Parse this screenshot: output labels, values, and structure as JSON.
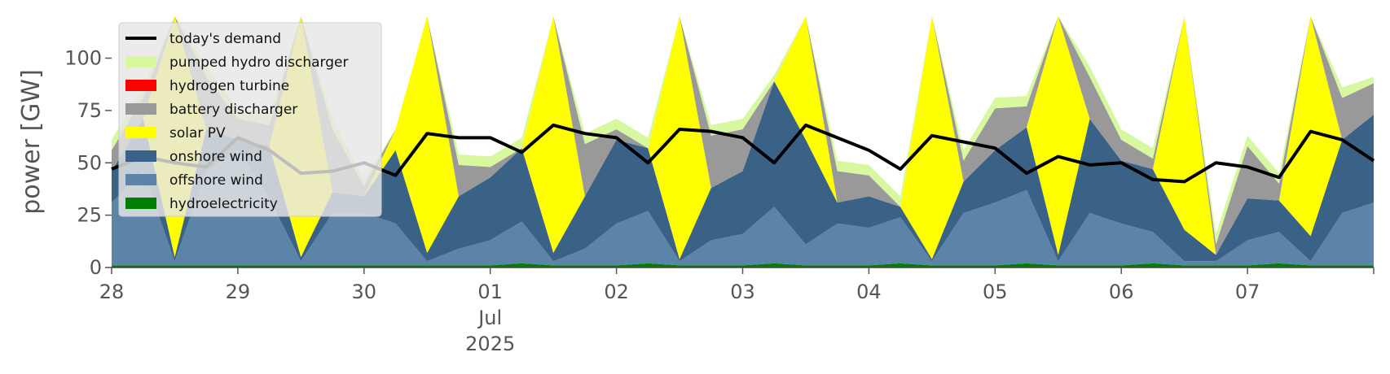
{
  "chart_data": {
    "type": "area",
    "title": "",
    "xlabel": "",
    "ylabel": "power [GW]",
    "ylim": [
      0,
      120
    ],
    "xlim": [
      "2025-06-28",
      "2025-07-08"
    ],
    "yticks": [
      0,
      25,
      50,
      75,
      100
    ],
    "xticks": [
      {
        "x": "2025-06-28",
        "lines": [
          "28"
        ]
      },
      {
        "x": "2025-06-29",
        "lines": [
          "29"
        ]
      },
      {
        "x": "2025-06-30",
        "lines": [
          "30"
        ]
      },
      {
        "x": "2025-07-01",
        "lines": [
          "01",
          "Jul",
          "2025"
        ]
      },
      {
        "x": "2025-07-02",
        "lines": [
          "02"
        ]
      },
      {
        "x": "2025-07-03",
        "lines": [
          "03"
        ]
      },
      {
        "x": "2025-07-04",
        "lines": [
          "04"
        ]
      },
      {
        "x": "2025-07-05",
        "lines": [
          "05"
        ]
      },
      {
        "x": "2025-07-06",
        "lines": [
          "06"
        ]
      },
      {
        "x": "2025-07-07",
        "lines": [
          "07"
        ]
      }
    ],
    "grid": false,
    "legend_position": "top-left",
    "x": [
      "2025-06-28 00:00",
      "2025-06-28 06:00",
      "2025-06-28 12:00",
      "2025-06-28 18:00",
      "2025-06-29 00:00",
      "2025-06-29 06:00",
      "2025-06-29 12:00",
      "2025-06-29 18:00",
      "2025-06-30 00:00",
      "2025-06-30 06:00",
      "2025-06-30 12:00",
      "2025-06-30 18:00",
      "2025-07-01 00:00",
      "2025-07-01 06:00",
      "2025-07-01 12:00",
      "2025-07-01 18:00",
      "2025-07-02 00:00",
      "2025-07-02 06:00",
      "2025-07-02 12:00",
      "2025-07-02 18:00",
      "2025-07-03 00:00",
      "2025-07-03 06:00",
      "2025-07-03 12:00",
      "2025-07-03 18:00",
      "2025-07-04 00:00",
      "2025-07-04 06:00",
      "2025-07-04 12:00",
      "2025-07-04 18:00",
      "2025-07-05 00:00",
      "2025-07-05 06:00",
      "2025-07-05 12:00",
      "2025-07-05 18:00",
      "2025-07-06 00:00",
      "2025-07-06 06:00",
      "2025-07-06 12:00",
      "2025-07-06 18:00",
      "2025-07-07 00:00",
      "2025-07-07 06:00",
      "2025-07-07 12:00",
      "2025-07-07 18:00",
      "2025-07-08 00:00"
    ],
    "series": [
      {
        "name": "hydroelectricity",
        "color": "#008000",
        "values": [
          1,
          1,
          1,
          1,
          1,
          1,
          1,
          1,
          1,
          1,
          1,
          1,
          1,
          2,
          1,
          1,
          1,
          2,
          1,
          1,
          1,
          2,
          1,
          1,
          1,
          2,
          1,
          1,
          1,
          2,
          1,
          1,
          1,
          2,
          1,
          1,
          1,
          2,
          1,
          1,
          1
        ]
      },
      {
        "name": "offshore wind",
        "color": "#5b84a8",
        "values": [
          30,
          45,
          2,
          45,
          55,
          32,
          2,
          25,
          25,
          20,
          2,
          8,
          12,
          20,
          2,
          8,
          20,
          25,
          2,
          12,
          15,
          27,
          10,
          20,
          18,
          22,
          2,
          25,
          30,
          35,
          2,
          25,
          20,
          15,
          2,
          2,
          12,
          15,
          2,
          25,
          30
        ]
      },
      {
        "name": "onshore wind",
        "color": "#3a6186",
        "values": [
          15,
          25,
          2,
          20,
          5,
          25,
          2,
          10,
          8,
          35,
          4,
          25,
          30,
          35,
          4,
          25,
          40,
          30,
          1,
          25,
          30,
          60,
          50,
          10,
          15,
          5,
          1,
          15,
          25,
          30,
          3,
          45,
          30,
          30,
          15,
          3,
          20,
          15,
          12,
          35,
          42
        ]
      },
      {
        "name": "solar PV",
        "color": "#ffff00",
        "values": [
          0,
          0,
          140,
          0,
          0,
          0,
          140,
          0,
          0,
          10,
          140,
          0,
          0,
          0,
          140,
          0,
          0,
          0,
          140,
          0,
          0,
          0,
          140,
          0,
          0,
          0,
          140,
          0,
          0,
          0,
          140,
          0,
          0,
          0,
          140,
          0,
          0,
          0,
          140,
          0,
          0
        ]
      },
      {
        "name": "battery discharger",
        "color": "#999999",
        "values": [
          10,
          10,
          0,
          25,
          10,
          10,
          0,
          30,
          5,
          0,
          0,
          15,
          5,
          0,
          0,
          25,
          5,
          0,
          0,
          25,
          20,
          0,
          0,
          15,
          10,
          0,
          0,
          10,
          20,
          10,
          0,
          20,
          10,
          5,
          0,
          5,
          25,
          8,
          0,
          20,
          15
        ]
      },
      {
        "name": "hydrogen turbine",
        "color": "#ff0000",
        "values": [
          0,
          0,
          0,
          0,
          0,
          0,
          0,
          0,
          0,
          0,
          0,
          0,
          0,
          0,
          0,
          0,
          0,
          0,
          0,
          0,
          0,
          0,
          0,
          0,
          0,
          0,
          0,
          0,
          0,
          0,
          0,
          0,
          0,
          0,
          0,
          0,
          0,
          0,
          0,
          0,
          0
        ]
      },
      {
        "name": "pumped hydro discharger",
        "color": "#d8f8a0",
        "values": [
          5,
          5,
          0,
          5,
          5,
          5,
          0,
          5,
          3,
          0,
          0,
          5,
          5,
          5,
          0,
          5,
          5,
          5,
          0,
          5,
          5,
          3,
          0,
          5,
          5,
          5,
          0,
          5,
          5,
          5,
          0,
          5,
          5,
          5,
          0,
          5,
          5,
          5,
          0,
          5,
          3
        ]
      }
    ],
    "demand": {
      "name": "today's demand",
      "color": "#000000",
      "values": [
        47,
        53,
        50,
        48,
        62,
        56,
        45,
        46,
        50,
        44,
        64,
        62,
        62,
        55,
        68,
        64,
        62,
        50,
        66,
        65,
        62,
        50,
        68,
        62,
        56,
        47,
        63,
        60,
        57,
        45,
        53,
        49,
        50,
        42,
        41,
        50,
        48,
        43,
        65,
        61,
        51
      ]
    },
    "legend": [
      "today's demand",
      "pumped hydro discharger",
      "hydrogen turbine",
      "battery discharger",
      "solar PV",
      "onshore wind",
      "offshore wind",
      "hydroelectricity"
    ]
  }
}
